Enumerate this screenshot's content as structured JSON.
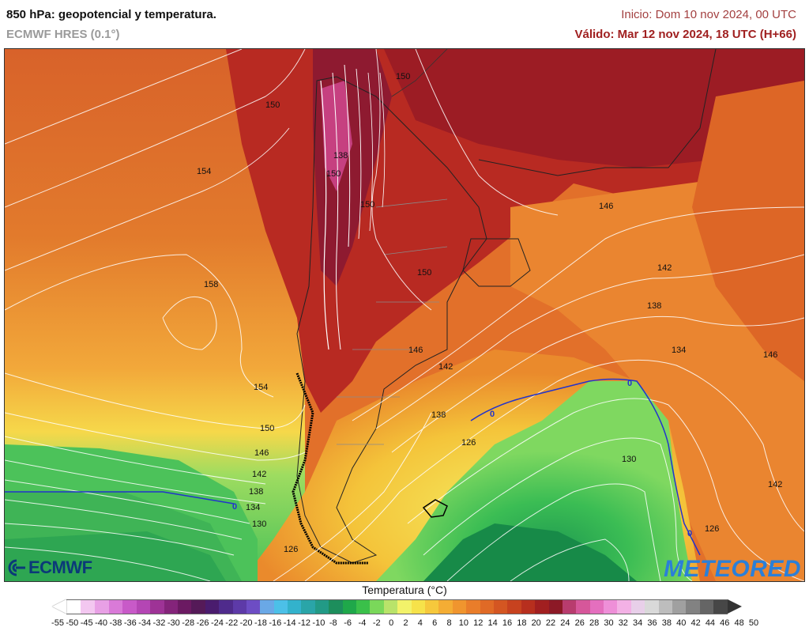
{
  "header": {
    "title": "850 hPa: geopotencial y temperatura.",
    "model": "ECMWF HRES (0.1°)",
    "init": "Inicio: Dom 10 nov 2024, 00 UTC",
    "valid": "Válido: Mar 12 nov 2024, 18 UTC (H+66)"
  },
  "map": {
    "region": "South America – Southern Cone",
    "contour_labels": [
      "150",
      "150",
      "154",
      "158",
      "138",
      "150",
      "150",
      "146",
      "142",
      "138",
      "134",
      "130",
      "126",
      "142",
      "146",
      "154",
      "150",
      "146",
      "142",
      "138",
      "134",
      "130",
      "126",
      "142",
      "138",
      "126",
      "146",
      "150"
    ],
    "zero_isotherm_label": "0"
  },
  "logos": {
    "left": "ECMWF",
    "right": "METEORED"
  },
  "legend": {
    "title": "Temperatura (°C)",
    "ticks": [
      "-55",
      "-50",
      "-45",
      "-40",
      "-38",
      "-36",
      "-34",
      "-32",
      "-30",
      "-28",
      "-26",
      "-24",
      "-22",
      "-20",
      "-18",
      "-16",
      "-14",
      "-12",
      "-10",
      "-8",
      "-6",
      "-4",
      "-2",
      "0",
      "2",
      "4",
      "6",
      "8",
      "10",
      "12",
      "14",
      "16",
      "18",
      "20",
      "22",
      "24",
      "26",
      "28",
      "30",
      "32",
      "34",
      "36",
      "38",
      "40",
      "42",
      "44",
      "46",
      "48",
      "50"
    ],
    "colors": [
      "#ffffff",
      "#f3c7f0",
      "#e8a0e5",
      "#d97ad8",
      "#c85ac8",
      "#b446b4",
      "#9e3396",
      "#84247a",
      "#6b1a62",
      "#551a58",
      "#4a1c6e",
      "#4f2b8c",
      "#5d3aa8",
      "#6d4dc4",
      "#6aa8e6",
      "#4cc0e8",
      "#33b2cc",
      "#2aa5a8",
      "#229a86",
      "#1d8e5c",
      "#1fa84a",
      "#3ac04a",
      "#7ad85a",
      "#b9e36a",
      "#f2f26a",
      "#f6e24a",
      "#f6c83c",
      "#f4ad34",
      "#f0952e",
      "#e97d2a",
      "#e06a26",
      "#d45622",
      "#c7421f",
      "#b72f1e",
      "#a11f20",
      "#8c1926",
      "#b83c6e",
      "#d6579a",
      "#e46fbe",
      "#ee8fd8",
      "#f3b1e5",
      "#e8cfe9",
      "#d9d9d9",
      "#bdbdbd",
      "#a0a0a0",
      "#828282",
      "#656565",
      "#474747"
    ],
    "arrow_low": "#ffffff",
    "arrow_high": "#333333"
  }
}
